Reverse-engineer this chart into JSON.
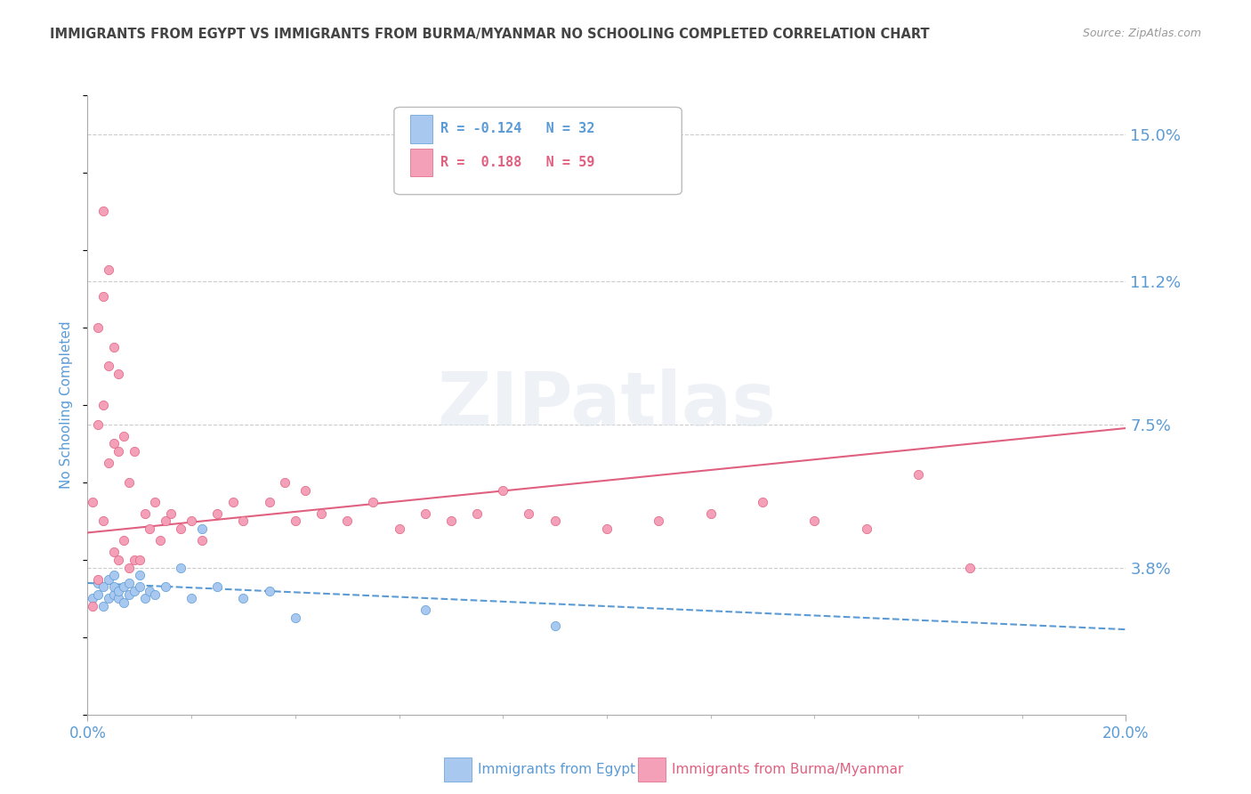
{
  "title": "IMMIGRANTS FROM EGYPT VS IMMIGRANTS FROM BURMA/MYANMAR NO SCHOOLING COMPLETED CORRELATION CHART",
  "source": "Source: ZipAtlas.com",
  "ylabel": "No Schooling Completed",
  "xlim": [
    0.0,
    0.2
  ],
  "ylim": [
    0.0,
    0.16
  ],
  "ytick_labels": [
    "3.8%",
    "7.5%",
    "11.2%",
    "15.0%"
  ],
  "ytick_vals": [
    0.038,
    0.075,
    0.112,
    0.15
  ],
  "color_egypt": "#A8C8F0",
  "color_burma": "#F4A0B8",
  "color_egypt_line": "#5B9BD5",
  "color_burma_line": "#E06080",
  "legend_label_egypt": "Immigrants from Egypt",
  "legend_label_burma": "Immigrants from Burma/Myanmar",
  "R_egypt": -0.124,
  "N_egypt": 32,
  "R_burma": 0.188,
  "N_burma": 59,
  "egypt_trend_y0": 0.034,
  "egypt_trend_y1": 0.022,
  "burma_trend_y0": 0.047,
  "burma_trend_y1": 0.074,
  "egypt_scatter_x": [
    0.001,
    0.002,
    0.002,
    0.003,
    0.003,
    0.004,
    0.004,
    0.005,
    0.005,
    0.005,
    0.006,
    0.006,
    0.007,
    0.007,
    0.008,
    0.008,
    0.009,
    0.01,
    0.01,
    0.011,
    0.012,
    0.013,
    0.015,
    0.018,
    0.02,
    0.022,
    0.025,
    0.03,
    0.035,
    0.04,
    0.065,
    0.09
  ],
  "egypt_scatter_y": [
    0.03,
    0.031,
    0.034,
    0.028,
    0.033,
    0.03,
    0.035,
    0.031,
    0.033,
    0.036,
    0.03,
    0.032,
    0.029,
    0.033,
    0.031,
    0.034,
    0.032,
    0.033,
    0.036,
    0.03,
    0.032,
    0.031,
    0.033,
    0.038,
    0.03,
    0.048,
    0.033,
    0.03,
    0.032,
    0.025,
    0.027,
    0.023
  ],
  "burma_scatter_x": [
    0.001,
    0.001,
    0.002,
    0.002,
    0.002,
    0.003,
    0.003,
    0.003,
    0.003,
    0.004,
    0.004,
    0.004,
    0.005,
    0.005,
    0.005,
    0.006,
    0.006,
    0.006,
    0.007,
    0.007,
    0.008,
    0.008,
    0.009,
    0.009,
    0.01,
    0.011,
    0.012,
    0.013,
    0.014,
    0.015,
    0.016,
    0.018,
    0.02,
    0.022,
    0.025,
    0.028,
    0.03,
    0.035,
    0.038,
    0.04,
    0.042,
    0.045,
    0.05,
    0.055,
    0.06,
    0.065,
    0.07,
    0.075,
    0.08,
    0.085,
    0.09,
    0.1,
    0.11,
    0.12,
    0.13,
    0.14,
    0.15,
    0.16,
    0.17
  ],
  "burma_scatter_y": [
    0.028,
    0.055,
    0.035,
    0.075,
    0.1,
    0.05,
    0.08,
    0.108,
    0.13,
    0.065,
    0.09,
    0.115,
    0.042,
    0.07,
    0.095,
    0.04,
    0.068,
    0.088,
    0.045,
    0.072,
    0.038,
    0.06,
    0.04,
    0.068,
    0.04,
    0.052,
    0.048,
    0.055,
    0.045,
    0.05,
    0.052,
    0.048,
    0.05,
    0.045,
    0.052,
    0.055,
    0.05,
    0.055,
    0.06,
    0.05,
    0.058,
    0.052,
    0.05,
    0.055,
    0.048,
    0.052,
    0.05,
    0.052,
    0.058,
    0.052,
    0.05,
    0.048,
    0.05,
    0.052,
    0.055,
    0.05,
    0.048,
    0.062,
    0.038
  ],
  "watermark": "ZIPatlas",
  "background_color": "#FFFFFF",
  "grid_color": "#CCCCCC",
  "title_color": "#444444",
  "tick_label_color": "#5B9BD5"
}
